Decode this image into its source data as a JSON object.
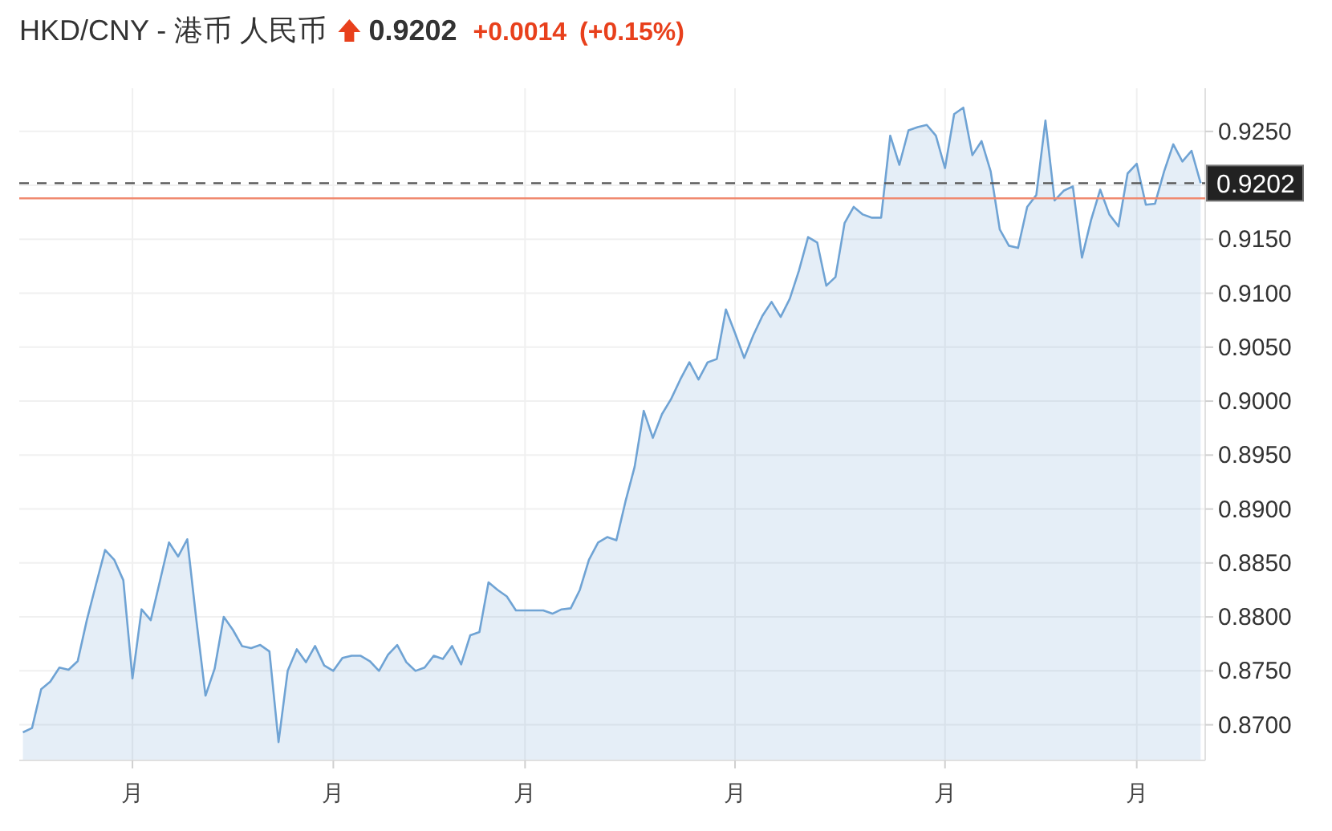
{
  "chart_data": {
    "type": "area",
    "title": "HKD/CNY - 港币 人民币",
    "subtitle": "0.9202",
    "annotations": [
      "+0.0014",
      "(+0.15%)"
    ],
    "categories": [
      null,
      null,
      null,
      null,
      null,
      null,
      null,
      null,
      null,
      null,
      null,
      null,
      "月",
      null,
      null,
      null,
      null,
      null,
      null,
      null,
      null,
      null,
      null,
      null,
      null,
      null,
      null,
      null,
      null,
      null,
      null,
      null,
      null,
      null,
      "月",
      null,
      null,
      null,
      null,
      null,
      null,
      null,
      null,
      null,
      null,
      null,
      null,
      null,
      null,
      null,
      null,
      null,
      null,
      null,
      null,
      "月",
      null,
      null,
      null,
      null,
      null,
      null,
      null,
      null,
      null,
      null,
      null,
      null,
      null,
      null,
      null,
      null,
      null,
      null,
      null,
      null,
      null,
      null,
      "月",
      null,
      null,
      null,
      null,
      null,
      null,
      null,
      null,
      null,
      null,
      null,
      null,
      null,
      null,
      null,
      null,
      null,
      null,
      null,
      null,
      null,
      null,
      "月",
      null,
      null,
      null,
      null,
      null,
      null,
      null,
      null,
      null,
      null,
      null,
      null,
      null,
      null,
      null,
      null,
      null,
      null,
      null,
      null,
      "月",
      null,
      null,
      null,
      null,
      null,
      null,
      null
    ],
    "series": [
      {
        "color": "#6fa3d4",
        "values": [
          0.8693,
          0.8697,
          0.8733,
          0.874,
          0.8753,
          0.8751,
          0.8759,
          0.8797,
          0.883,
          0.8862,
          0.8853,
          0.8834,
          0.8743,
          0.8807,
          0.8797,
          0.8833,
          0.8869,
          0.8856,
          0.8872,
          0.8797,
          0.8727,
          0.8752,
          0.88,
          0.8788,
          0.8773,
          0.8771,
          0.8774,
          0.8768,
          0.8684,
          0.875,
          0.877,
          0.8758,
          0.8773,
          0.8755,
          0.875,
          0.8762,
          0.8764,
          0.8764,
          0.8759,
          0.875,
          0.8765,
          0.8774,
          0.8758,
          0.875,
          0.8753,
          0.8764,
          0.8761,
          0.8773,
          0.8756,
          0.8783,
          0.8786,
          0.8832,
          0.8825,
          0.8819,
          0.8806,
          0.8806,
          0.8806,
          0.8806,
          0.8803,
          0.8807,
          0.8808,
          0.8825,
          0.8853,
          0.8869,
          0.8874,
          0.8871,
          0.8907,
          0.8939,
          0.8991,
          0.8966,
          0.8988,
          0.9002,
          0.902,
          0.9036,
          0.902,
          0.9036,
          0.9039,
          0.9085,
          0.9063,
          0.904,
          0.9061,
          0.9079,
          0.9092,
          0.9078,
          0.9095,
          0.9121,
          0.9152,
          0.9147,
          0.9107,
          0.9115,
          0.9165,
          0.918,
          0.9173,
          0.917,
          0.917,
          0.9246,
          0.9219,
          0.9251,
          0.9254,
          0.9256,
          0.9246,
          0.9216,
          0.9266,
          0.9272,
          0.9228,
          0.9241,
          0.9213,
          0.9159,
          0.9144,
          0.9142,
          0.918,
          0.9191,
          0.926,
          0.9186,
          0.9195,
          0.9199,
          0.9133,
          0.9168,
          0.9196,
          0.9173,
          0.9162,
          0.9211,
          0.922,
          0.9182,
          0.9183,
          0.9213,
          0.9238,
          0.9222,
          0.9232,
          0.9202
        ]
      }
    ],
    "ylim": [
      0.8667,
      0.929
    ],
    "yticks": [
      {
        "value": 0.87,
        "label": "0.8700"
      },
      {
        "value": 0.875,
        "label": "0.8750"
      },
      {
        "value": 0.88,
        "label": "0.8800"
      },
      {
        "value": 0.885,
        "label": "0.8850"
      },
      {
        "value": 0.89,
        "label": "0.8900"
      },
      {
        "value": 0.895,
        "label": "0.8950"
      },
      {
        "value": 0.9,
        "label": "0.9000"
      },
      {
        "value": 0.905,
        "label": "0.9050"
      },
      {
        "value": 0.91,
        "label": "0.9100"
      },
      {
        "value": 0.915,
        "label": "0.9150"
      },
      {
        "value": 0.92,
        "label": null
      },
      {
        "value": 0.925,
        "label": "0.9250"
      }
    ],
    "ref_lines": [
      {
        "axis": "y",
        "value": 0.9202,
        "label": "0.9202",
        "color": "#555555",
        "line_style": "dashed"
      },
      {
        "axis": "y",
        "value": 0.9188,
        "color": "#f08a70",
        "line_style": "solid"
      }
    ],
    "grid": true
  }
}
